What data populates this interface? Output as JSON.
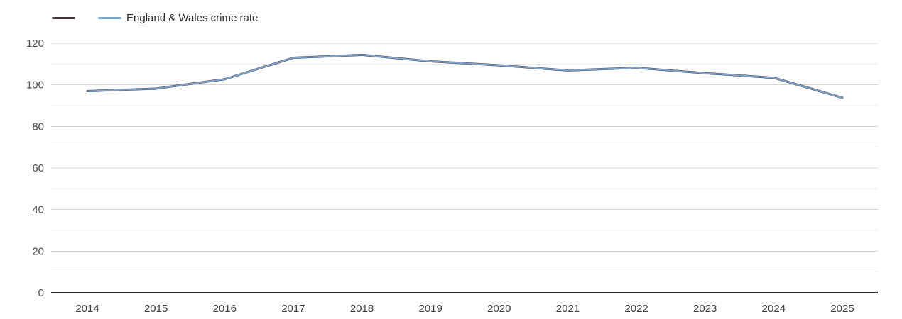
{
  "chart_data": {
    "type": "line",
    "title": "",
    "categories": [
      "2014",
      "2015",
      "2016",
      "2017",
      "2018",
      "2019",
      "2020",
      "2021",
      "2022",
      "2023",
      "2024",
      "2025"
    ],
    "series": [
      {
        "name": "",
        "color": "#453a41",
        "stroke_width": 3,
        "values": [
          97.0,
          98.2,
          102.7,
          113.0,
          114.4,
          111.3,
          109.4,
          106.9,
          108.2,
          105.6,
          103.4,
          93.8
        ]
      },
      {
        "name": "England & Wales crime rate",
        "color": "#7ca8d0",
        "stroke_width": 2,
        "values": [
          97.0,
          98.2,
          102.7,
          113.0,
          114.4,
          111.3,
          109.4,
          106.9,
          108.2,
          105.6,
          103.4,
          93.8
        ]
      }
    ],
    "xlabel": "",
    "ylabel": "",
    "ylim": [
      0,
      120
    ],
    "y_major_step": 20,
    "y_minor_step": 10,
    "grid": true,
    "legend_position": "top-left",
    "axis_color": "#333333",
    "major_grid_color": "#d5d5d5",
    "minor_grid_color": "#ebebeb"
  }
}
